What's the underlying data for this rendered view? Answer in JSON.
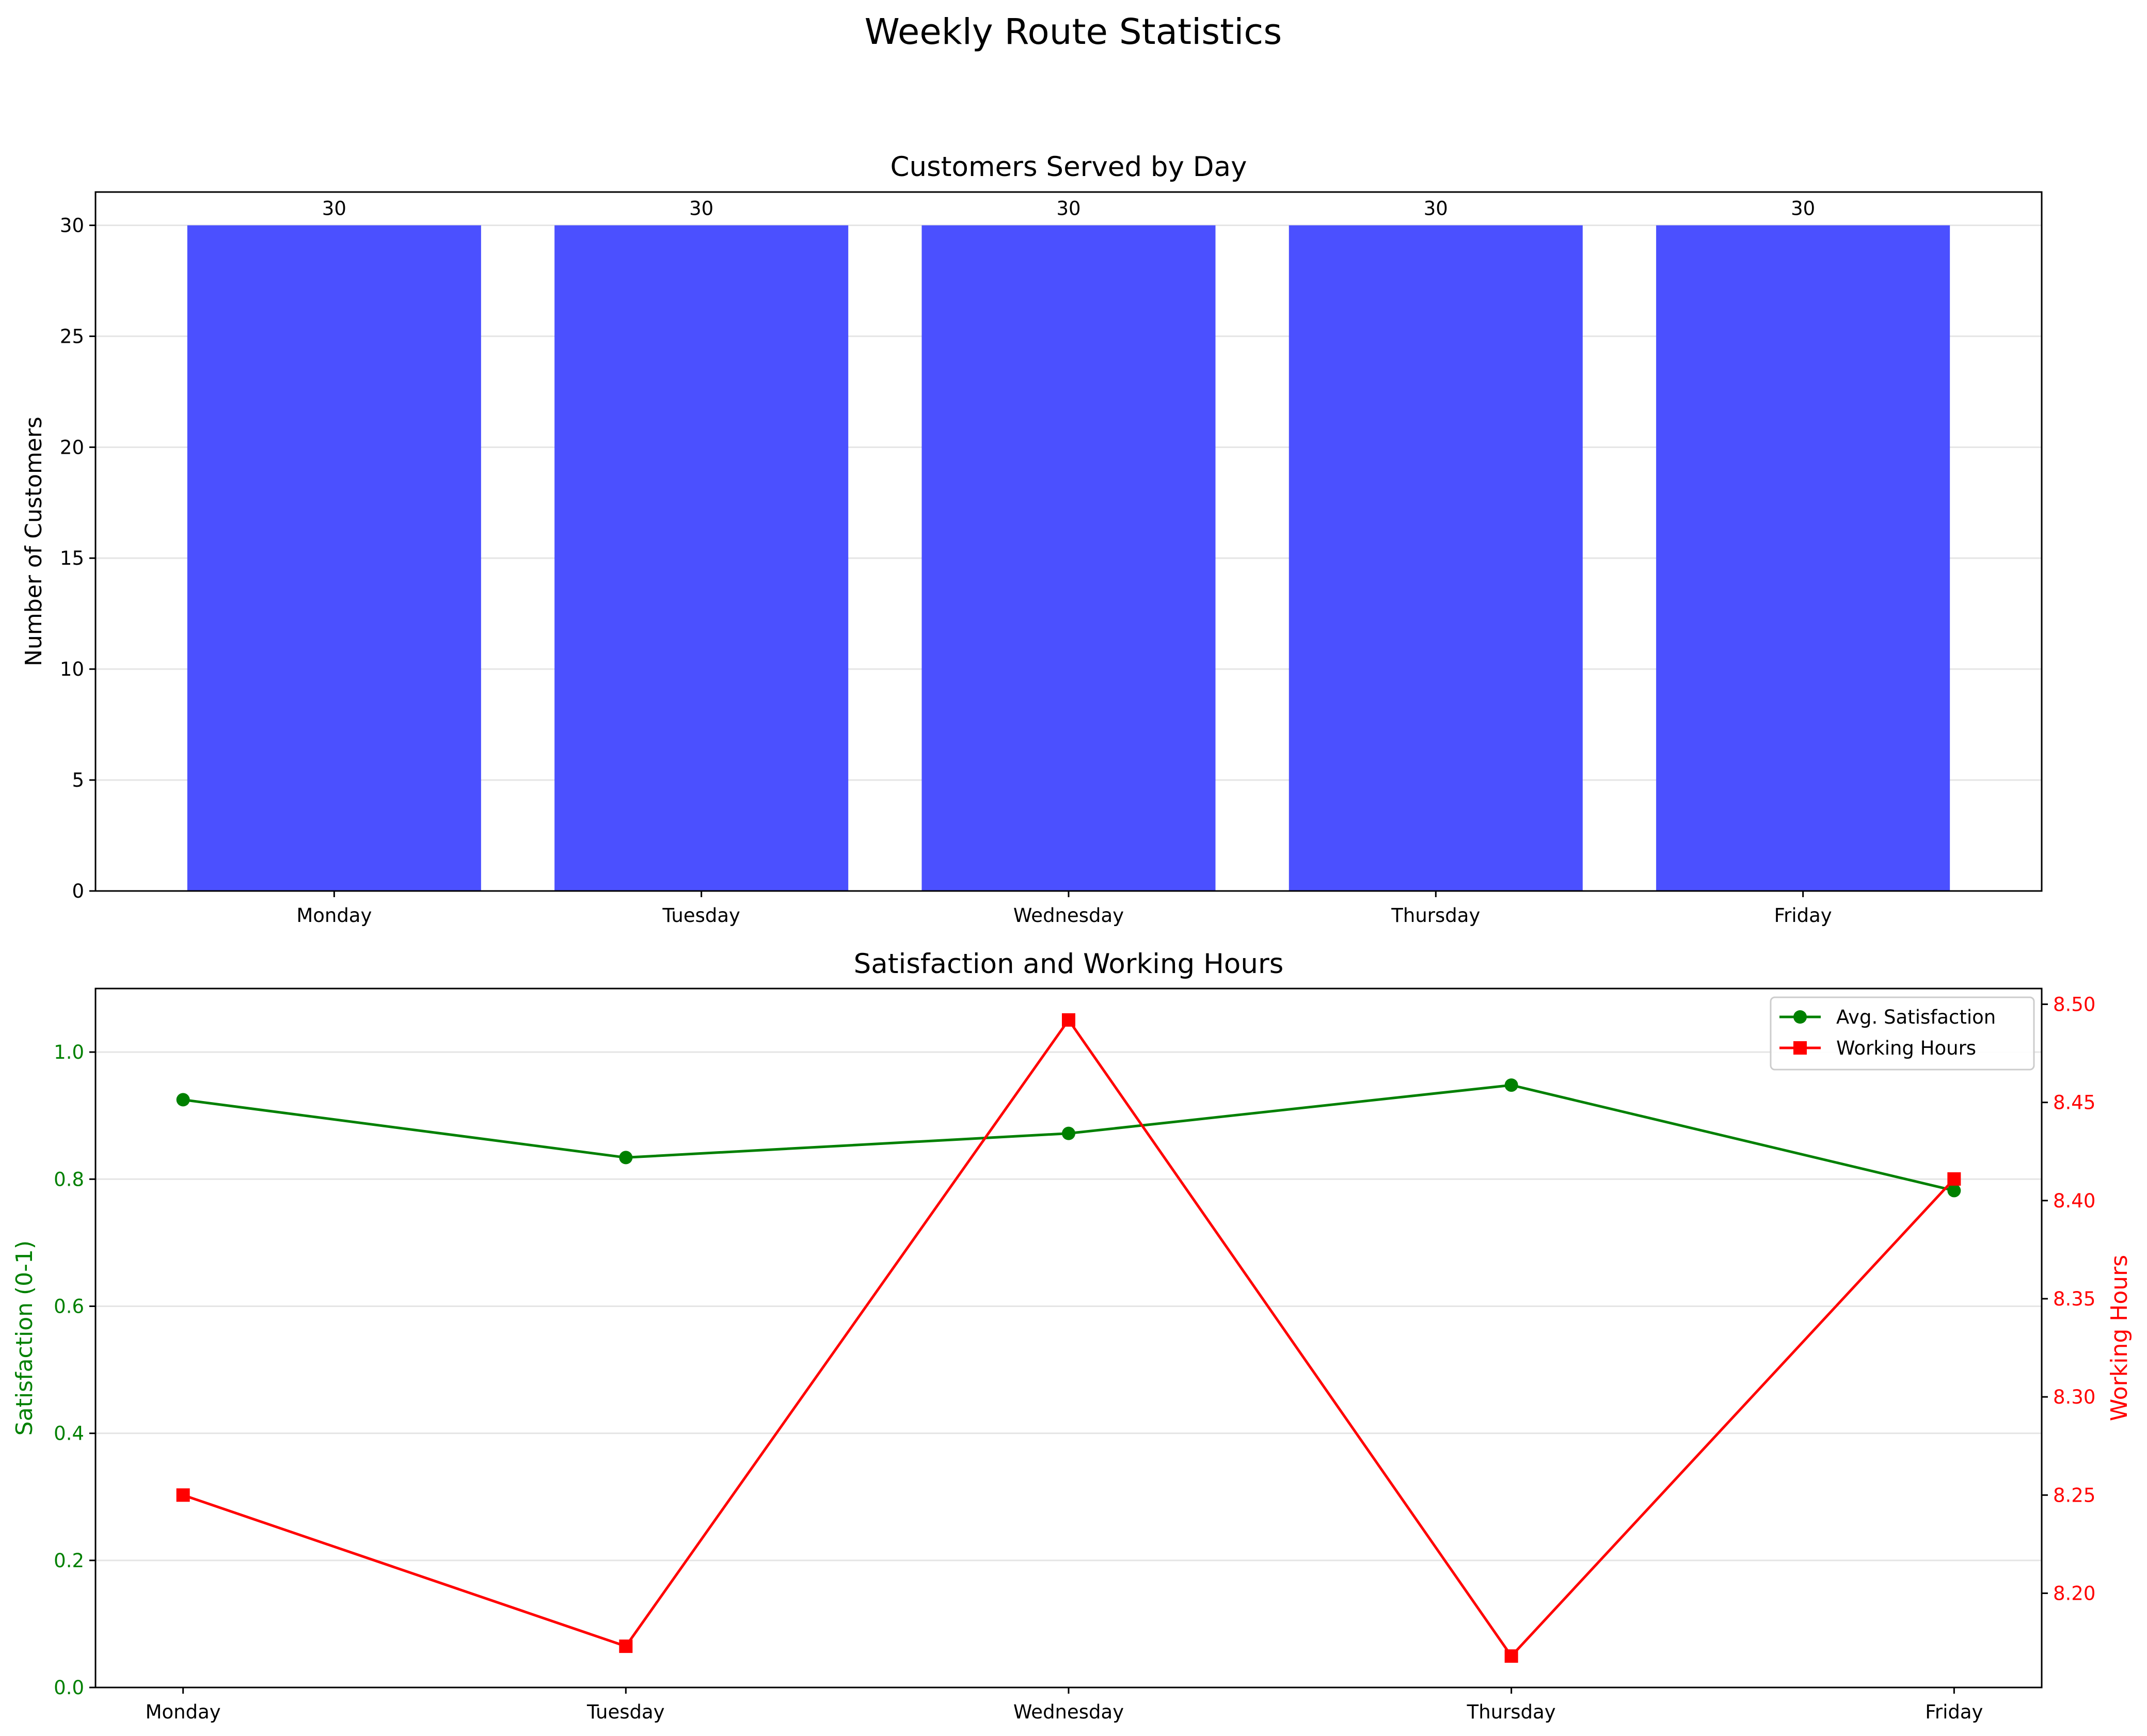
{
  "figure_title": "Weekly Route Statistics",
  "colors": {
    "bar": "#4b50ff",
    "satisfaction": "#008000",
    "working_hours": "#ff0000",
    "grid": "#e5e5e5"
  },
  "chart_data": [
    {
      "type": "bar",
      "title": "Customers Served by Day",
      "categories": [
        "Monday",
        "Tuesday",
        "Wednesday",
        "Thursday",
        "Friday"
      ],
      "values": [
        30,
        30,
        30,
        30,
        30
      ],
      "data_labels": [
        "30",
        "30",
        "30",
        "30",
        "30"
      ],
      "xlabel": "",
      "ylabel": "Number of Customers",
      "ylim": [
        0,
        31.5
      ],
      "yticks": [
        0,
        5,
        10,
        15,
        20,
        25,
        30
      ],
      "grid": "horizontal",
      "legend": "none"
    },
    {
      "type": "line",
      "title": "Satisfaction and Working Hours",
      "categories": [
        "Monday",
        "Tuesday",
        "Wednesday",
        "Thursday",
        "Friday"
      ],
      "series": [
        {
          "name": "Avg. Satisfaction",
          "axis": "left",
          "marker": "circle",
          "values": [
            0.925,
            0.834,
            0.872,
            0.948,
            0.782
          ]
        },
        {
          "name": "Working Hours",
          "axis": "right",
          "marker": "square",
          "values": [
            8.25,
            8.173,
            8.492,
            8.168,
            8.411
          ]
        }
      ],
      "xlabel": "",
      "ylabel_left": "Satisfaction (0-1)",
      "ylabel_right": "Working Hours",
      "ylim_left": [
        0,
        1.1
      ],
      "yticks_left": [
        "0.0",
        "0.2",
        "0.4",
        "0.6",
        "0.8",
        "1.0"
      ],
      "ylim_right": [
        8.152,
        8.508
      ],
      "yticks_right": [
        "8.20",
        "8.25",
        "8.30",
        "8.35",
        "8.40",
        "8.45",
        "8.50"
      ],
      "grid": "horizontal",
      "legend": "upper right"
    }
  ]
}
